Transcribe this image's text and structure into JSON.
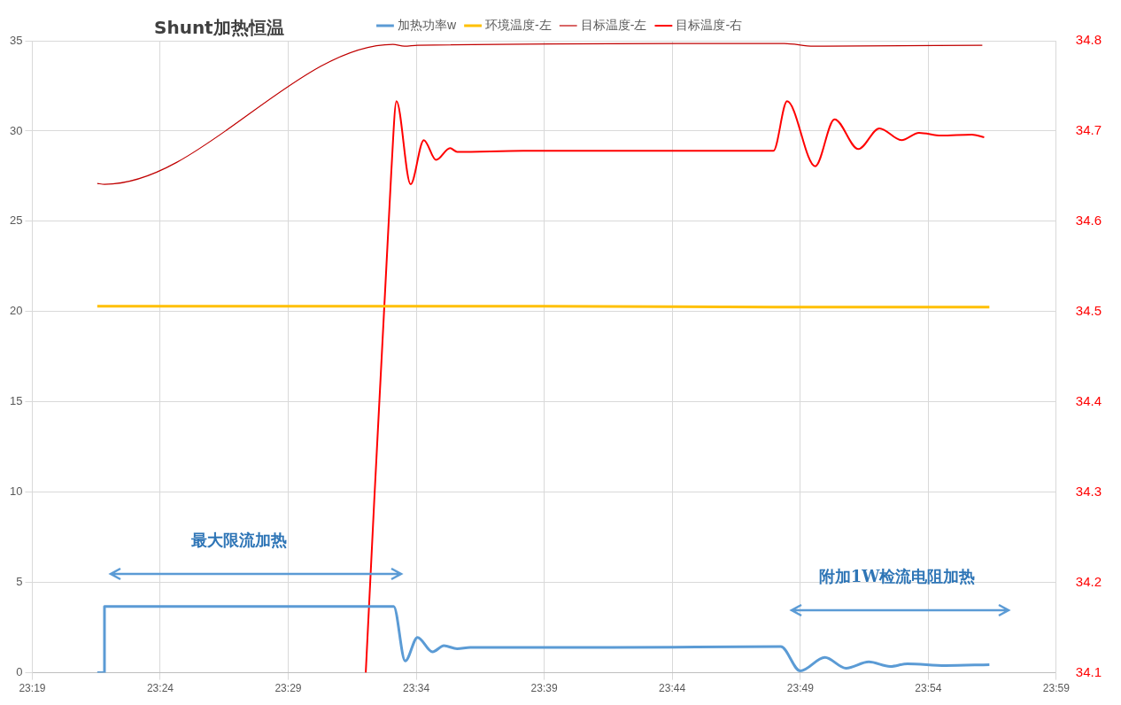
{
  "chart_data": {
    "type": "line",
    "title": "Shunt加热恒温",
    "xlim": [
      23.3167,
      23.9833
    ],
    "xticks": [
      {
        "value": 23.3167,
        "label": "23:19"
      },
      {
        "value": 23.4,
        "label": "23:24"
      },
      {
        "value": 23.4833,
        "label": "23:29"
      },
      {
        "value": 23.5667,
        "label": "23:34"
      },
      {
        "value": 23.65,
        "label": "23:39"
      },
      {
        "value": 23.7333,
        "label": "23:44"
      },
      {
        "value": 23.8167,
        "label": "23:49"
      },
      {
        "value": 23.9,
        "label": "23:54"
      },
      {
        "value": 23.9833,
        "label": "23:59"
      }
    ],
    "ylim": [
      0,
      35
    ],
    "yticks": [
      0,
      5,
      10,
      15,
      20,
      25,
      30,
      35
    ],
    "y2lim": [
      34.1,
      34.8
    ],
    "y2ticks": [
      {
        "value": 34.1,
        "label": "34.1"
      },
      {
        "value": 34.2,
        "label": "34.2"
      },
      {
        "value": 34.3,
        "label": "34.3"
      },
      {
        "value": 34.4,
        "label": "34.4"
      },
      {
        "value": 34.5,
        "label": "34.5"
      },
      {
        "value": 34.6,
        "label": "34.6"
      },
      {
        "value": 34.7,
        "label": "34.7"
      },
      {
        "value": 34.8,
        "label": "34.8"
      }
    ],
    "grid": true,
    "legend": "top",
    "marker": "none",
    "line_style": "solid",
    "series": [
      {
        "name": "加热功率w",
        "color": "#5b9bd5",
        "x": [
          23.359,
          23.3637,
          23.3637,
          23.552,
          23.5595,
          23.5675,
          23.5773,
          23.5847,
          23.5933,
          23.6018,
          23.6935,
          23.804,
          23.8167,
          23.8327,
          23.8465,
          23.8613,
          23.8752,
          23.8865,
          23.9112,
          23.9398
        ],
        "values": [
          0,
          0,
          3.67,
          3.67,
          0.65,
          1.96,
          1.16,
          1.5,
          1.33,
          1.4,
          1.4,
          1.45,
          0.1,
          0.85,
          0.25,
          0.6,
          0.35,
          0.5,
          0.4,
          0.45
        ]
      },
      {
        "name": "环境温度-左",
        "color": "#ffc000",
        "x": [
          23.359,
          23.5,
          23.65,
          23.8,
          23.9398
        ],
        "values": [
          20.3,
          20.3,
          20.3,
          20.25,
          20.25
        ]
      },
      {
        "name": "目标温度-左",
        "color": "#c00000",
        "x": [
          23.359,
          23.3637,
          23.5515,
          23.559,
          23.5675,
          23.8063,
          23.8253,
          23.9352
        ],
        "values": [
          27.1,
          27.05,
          34.8,
          34.7,
          34.75,
          34.85,
          34.7,
          34.75
        ]
      },
      {
        "name": "目标温度-右",
        "color": "#ff0000",
        "axis": "y2",
        "x": [
          23.5338,
          23.5504,
          23.5538,
          23.563,
          23.5716,
          23.5796,
          23.5887,
          23.5933,
          23.6363,
          23.6936,
          23.7508,
          23.7992,
          23.8081,
          23.8264,
          23.839,
          23.8545,
          23.8682,
          23.8826,
          23.894,
          23.9083,
          23.9284,
          23.9364
        ],
        "values": [
          34.1,
          34.654,
          34.733,
          34.641,
          34.69,
          34.668,
          34.681,
          34.677,
          34.678,
          34.678,
          34.678,
          34.678,
          34.733,
          34.661,
          34.713,
          34.68,
          34.703,
          34.69,
          34.698,
          34.695,
          34.696,
          34.693
        ]
      }
    ],
    "annotations": [
      "最大限流加热",
      "附加1W检流电阻加热"
    ]
  }
}
